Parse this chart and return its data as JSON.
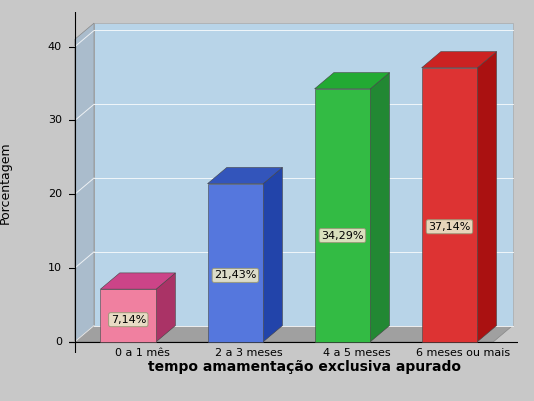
{
  "categories": [
    "0 a 1 mês",
    "2 a 3 meses",
    "4 a 5 meses",
    "6 meses ou mais"
  ],
  "values": [
    7.14,
    21.43,
    34.29,
    37.14
  ],
  "labels": [
    "7,14%",
    "21,43%",
    "34,29%",
    "37,14%"
  ],
  "colors_front": [
    "#f080a0",
    "#5577dd",
    "#33bb44",
    "#dd3333"
  ],
  "colors_side": [
    "#aa3366",
    "#2244aa",
    "#228833",
    "#aa1111"
  ],
  "colors_top": [
    "#cc4488",
    "#3355bb",
    "#22aa33",
    "#cc2222"
  ],
  "xlabel": "tempo amamentação exclusiva apurado",
  "ylabel": "Porcentagem",
  "ylim": [
    0,
    41
  ],
  "yticks": [
    0,
    10,
    20,
    30,
    40
  ],
  "background_color": "#c5dff0",
  "outer_bg": "#c8c8c8",
  "floor_color": "#a0a0a0",
  "wall_color": "#b8d4e8",
  "xlabel_fontsize": 10,
  "ylabel_fontsize": 9,
  "label_fontsize": 8,
  "tick_fontsize": 8
}
